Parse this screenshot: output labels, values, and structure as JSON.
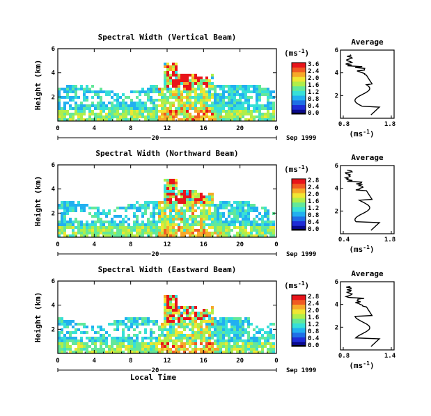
{
  "chart_data": [
    {
      "type": "heatmap",
      "title": "Spectral Width (Vertical Beam)",
      "ylabel": "Height (km)",
      "xlabel": "",
      "xlim": [
        0,
        24
      ],
      "ylim": [
        0,
        6
      ],
      "x_ticks": [
        "0",
        "4",
        "8",
        "12",
        "16",
        "20",
        "0"
      ],
      "y_ticks": [
        "6",
        "4",
        "2"
      ],
      "date_marker": "20",
      "date_label": "Sep 1999",
      "colorbar": {
        "unit": "(ms",
        "unit_exp": "-1",
        "unit_close": ")",
        "ticks": [
          "3.6",
          "2.4",
          "2.0",
          "1.6",
          "1.2",
          "0.8",
          "0.4",
          "0.0"
        ]
      },
      "average": {
        "title": "Average",
        "xlabel": "(ms",
        "xlabel_exp": "-1",
        "xlabel_close": ")",
        "x_ticks": [
          "0.8",
          "1.8"
        ],
        "y_ticks": [
          "6",
          "4",
          "2"
        ]
      }
    },
    {
      "type": "heatmap",
      "title": "Spectral Width (Northward Beam)",
      "ylabel": "Height (km)",
      "xlabel": "",
      "xlim": [
        0,
        24
      ],
      "ylim": [
        0,
        6
      ],
      "x_ticks": [
        "0",
        "4",
        "8",
        "12",
        "16",
        "20",
        "0"
      ],
      "y_ticks": [
        "6",
        "4",
        "2"
      ],
      "date_marker": "20",
      "date_label": "Sep 1999",
      "colorbar": {
        "unit": "(ms",
        "unit_exp": "-1",
        "unit_close": ")",
        "ticks": [
          "2.8",
          "2.4",
          "2.0",
          "1.6",
          "1.2",
          "0.8",
          "0.4",
          "0.0"
        ]
      },
      "average": {
        "title": "Average",
        "xlabel": "(ms",
        "xlabel_exp": "-1",
        "xlabel_close": ")",
        "x_ticks": [
          "0.4",
          "1.8"
        ],
        "y_ticks": [
          "6",
          "4",
          "2"
        ]
      }
    },
    {
      "type": "heatmap",
      "title": "Spectral Width (Eastward Beam)",
      "ylabel": "Height (km)",
      "xlabel": "Local Time",
      "xlim": [
        0,
        24
      ],
      "ylim": [
        0,
        6
      ],
      "x_ticks": [
        "0",
        "4",
        "8",
        "12",
        "16",
        "20",
        "0"
      ],
      "y_ticks": [
        "6",
        "4",
        "2"
      ],
      "date_marker": "20",
      "date_label": "Sep 1999",
      "colorbar": {
        "unit": "(ms",
        "unit_exp": "-1",
        "unit_close": ")",
        "ticks": [
          "2.8",
          "2.4",
          "2.0",
          "1.6",
          "1.2",
          "0.8",
          "0.4",
          "0.0"
        ]
      },
      "average": {
        "title": "Average",
        "xlabel": "(ms",
        "xlabel_exp": "-1",
        "xlabel_close": ")",
        "x_ticks": [
          "0.8",
          "1.4"
        ],
        "y_ticks": [
          "6",
          "4",
          "2"
        ]
      }
    }
  ],
  "colors": {
    "scale": [
      "#0a0a8c",
      "#1e2cd6",
      "#1f6fe6",
      "#22b0f0",
      "#37e0d8",
      "#63e89a",
      "#b0ee4a",
      "#f0e633",
      "#f6a829",
      "#f05a22",
      "#e8141a"
    ]
  }
}
